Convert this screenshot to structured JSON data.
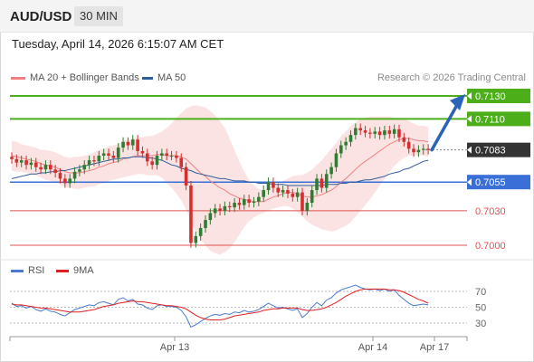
{
  "header": {
    "symbol": "AUD/USD",
    "timeframe": "30 MIN"
  },
  "datetime": "Tuesday, April 14, 2026 6:15:07 AM CET",
  "legend": [
    {
      "label": "MA 20 + Bollinger Bands",
      "color": "#f08080"
    },
    {
      "label": "MA 50",
      "color": "#2f5d9a"
    }
  ],
  "credit": "Research © 2026 Trading Central",
  "colors": {
    "resistance": "#4caf1a",
    "support_blue": "#3a6fd8",
    "support_red": "#e05050",
    "current": "#333333",
    "bull": "#2e7d32",
    "bear": "#d32f2f",
    "bands": "#fadada",
    "arrow": "#2a63b8",
    "rsi": "#4a7ad0",
    "rsi_ma": "#e02020"
  },
  "chart_data": [
    {
      "type": "candlestick",
      "title": "AUD/USD",
      "ylim": [
        0.6995,
        0.7135
      ],
      "levels": [
        {
          "value": 0.713,
          "label": "0.7130",
          "kind": "resistance"
        },
        {
          "value": 0.711,
          "label": "0.7110",
          "kind": "resistance"
        },
        {
          "value": 0.7083,
          "label": "0.7083",
          "kind": "current"
        },
        {
          "value": 0.7055,
          "label": "0.7055",
          "kind": "pivot"
        },
        {
          "value": 0.703,
          "label": "0.7030",
          "kind": "support"
        },
        {
          "value": 0.7,
          "label": "0.7000",
          "kind": "support"
        }
      ],
      "x_labels": [
        "Apr 13",
        "Apr 14",
        "Apr 17"
      ],
      "close": [
        0.7075,
        0.7072,
        0.7074,
        0.707,
        0.7072,
        0.7068,
        0.7066,
        0.707,
        0.7066,
        0.7063,
        0.7058,
        0.7054,
        0.7058,
        0.7064,
        0.7066,
        0.707,
        0.7074,
        0.7073,
        0.7078,
        0.708,
        0.7078,
        0.7076,
        0.7085,
        0.709,
        0.7087,
        0.7092,
        0.7082,
        0.708,
        0.7073,
        0.707,
        0.7078,
        0.708,
        0.7078,
        0.7078,
        0.7076,
        0.7068,
        0.7052,
        0.7002,
        0.7008,
        0.7015,
        0.7022,
        0.7028,
        0.7032,
        0.703,
        0.7034,
        0.7033,
        0.7037,
        0.7035,
        0.704,
        0.7037,
        0.7038,
        0.7042,
        0.7048,
        0.7055,
        0.705,
        0.7046,
        0.7048,
        0.7045,
        0.7042,
        0.7046,
        0.703,
        0.7037,
        0.7048,
        0.7058,
        0.705,
        0.7062,
        0.7068,
        0.708,
        0.7087,
        0.709,
        0.7096,
        0.7102,
        0.71,
        0.7098,
        0.7097,
        0.7099,
        0.7096,
        0.71,
        0.7097,
        0.7101,
        0.7094,
        0.709,
        0.7084,
        0.7081,
        0.7083,
        0.7084,
        0.7083
      ],
      "ma20": [
        0.7078,
        0.7077,
        0.7076,
        0.7075,
        0.7074,
        0.7073,
        0.7071,
        0.707,
        0.7069,
        0.7068,
        0.7066,
        0.7064,
        0.7063,
        0.7063,
        0.7063,
        0.7064,
        0.7065,
        0.7066,
        0.7068,
        0.7069,
        0.7071,
        0.7072,
        0.7073,
        0.7075,
        0.7076,
        0.7077,
        0.7078,
        0.7078,
        0.7078,
        0.7078,
        0.7079,
        0.7079,
        0.7078,
        0.7078,
        0.7078,
        0.7077,
        0.7075,
        0.7071,
        0.7067,
        0.7063,
        0.706,
        0.7056,
        0.7053,
        0.705,
        0.7048,
        0.7045,
        0.7043,
        0.7041,
        0.704,
        0.7039,
        0.7038,
        0.7038,
        0.7038,
        0.704,
        0.7042,
        0.7043,
        0.7045,
        0.7046,
        0.7046,
        0.7045,
        0.7043,
        0.7042,
        0.7042,
        0.7043,
        0.7044,
        0.7046,
        0.7048,
        0.7051,
        0.7055,
        0.7058,
        0.7062,
        0.7066,
        0.707,
        0.7073,
        0.7076,
        0.7079,
        0.7082,
        0.7085,
        0.7088,
        0.709,
        0.7092,
        0.7093,
        0.7093,
        0.7092,
        0.7091,
        0.7091,
        0.709
      ],
      "ma50": [
        0.7058,
        0.7059,
        0.706,
        0.7061,
        0.7062,
        0.7062,
        0.7063,
        0.7063,
        0.7064,
        0.7064,
        0.7065,
        0.7065,
        0.7066,
        0.7067,
        0.7068,
        0.7069,
        0.707,
        0.7071,
        0.7072,
        0.7073,
        0.7074,
        0.7075,
        0.7075,
        0.7076,
        0.7076,
        0.7077,
        0.7077,
        0.7077,
        0.7076,
        0.7076,
        0.7075,
        0.7074,
        0.7072,
        0.707,
        0.7069,
        0.7067,
        0.7066,
        0.7065,
        0.7063,
        0.7062,
        0.7061,
        0.706,
        0.7059,
        0.7058,
        0.7058,
        0.7057,
        0.7056,
        0.7056,
        0.7056,
        0.7055,
        0.7055,
        0.7054,
        0.7054,
        0.7054,
        0.7053,
        0.7053,
        0.7053,
        0.7052,
        0.7052,
        0.7052,
        0.7052,
        0.7052,
        0.7052,
        0.7052,
        0.7052,
        0.7053,
        0.7053,
        0.7053,
        0.7054,
        0.7054,
        0.7055,
        0.7055,
        0.7056,
        0.7057,
        0.7057,
        0.7058,
        0.7059,
        0.706,
        0.7062,
        0.7063,
        0.7064,
        0.7066,
        0.7067,
        0.7069,
        0.7071,
        0.7073,
        0.7074
      ],
      "band_width": [
        0.0013,
        0.0013,
        0.0012,
        0.0012,
        0.0012,
        0.0012,
        0.0012,
        0.0013,
        0.0013,
        0.0013,
        0.0013,
        0.0013,
        0.0013,
        0.0014,
        0.0014,
        0.0014,
        0.0014,
        0.0015,
        0.0015,
        0.0015,
        0.0015,
        0.0015,
        0.0015,
        0.0016,
        0.0016,
        0.0016,
        0.0016,
        0.0016,
        0.0017,
        0.0017,
        0.0018,
        0.002,
        0.0024,
        0.0028,
        0.0033,
        0.0038,
        0.0044,
        0.005,
        0.0055,
        0.0058,
        0.006,
        0.0061,
        0.006,
        0.0058,
        0.0054,
        0.0048,
        0.004,
        0.0032,
        0.0024,
        0.0018,
        0.0014,
        0.0011,
        0.001,
        0.001,
        0.001,
        0.001,
        0.0011,
        0.0012,
        0.0014,
        0.0016,
        0.0018,
        0.0021,
        0.0024,
        0.0027,
        0.003,
        0.0033,
        0.0036,
        0.0038,
        0.004,
        0.0041,
        0.0042,
        0.0041,
        0.004,
        0.0038,
        0.0036,
        0.0033,
        0.003,
        0.0027,
        0.0024,
        0.0021,
        0.0019,
        0.0017,
        0.0015,
        0.0014,
        0.0013,
        0.0013,
        0.0013
      ],
      "projection": {
        "from": 0.7083,
        "to": 0.713
      }
    },
    {
      "type": "line",
      "legend": [
        "RSI",
        "9MA"
      ],
      "ylim": [
        20,
        80
      ],
      "yticks": [
        70,
        50,
        30
      ],
      "rsi": [
        55,
        51,
        52,
        49,
        51,
        47,
        45,
        48,
        45,
        44,
        41,
        39,
        43,
        47,
        49,
        51,
        53,
        52,
        56,
        57,
        55,
        53,
        60,
        62,
        58,
        60,
        54,
        53,
        49,
        47,
        52,
        53,
        51,
        51,
        50,
        46,
        38,
        25,
        28,
        32,
        36,
        39,
        41,
        40,
        42,
        41,
        44,
        43,
        46,
        44,
        45,
        47,
        51,
        55,
        52,
        49,
        50,
        48,
        46,
        48,
        37,
        42,
        50,
        56,
        52,
        59,
        62,
        68,
        72,
        74,
        76,
        78,
        75,
        73,
        72,
        73,
        71,
        73,
        70,
        72,
        65,
        60,
        55,
        52,
        53,
        54,
        53
      ],
      "rsi_ma": [
        54,
        53,
        53,
        52,
        51,
        50,
        49,
        49,
        48,
        47,
        46,
        45,
        44,
        44,
        44,
        45,
        46,
        47,
        49,
        51,
        52,
        53,
        55,
        56,
        57,
        58,
        57,
        57,
        56,
        55,
        54,
        53,
        52,
        52,
        51,
        50,
        48,
        44,
        40,
        37,
        35,
        34,
        34,
        34,
        35,
        37,
        39,
        40,
        41,
        42,
        43,
        44,
        46,
        47,
        48,
        48,
        49,
        49,
        49,
        49,
        47,
        46,
        46,
        47,
        48,
        50,
        53,
        56,
        60,
        64,
        67,
        70,
        72,
        73,
        73,
        73,
        73,
        73,
        72,
        72,
        71,
        69,
        66,
        63,
        60,
        58,
        55
      ]
    }
  ]
}
